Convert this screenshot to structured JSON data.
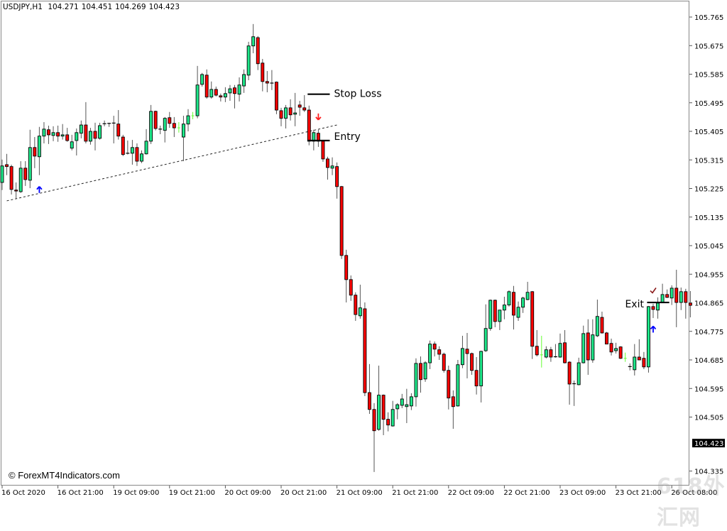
{
  "header": {
    "symbol_timeframe": "USDJPY,H1",
    "open": "104.271",
    "high": "104.451",
    "low": "104.269",
    "close": "104.423"
  },
  "copyright": "© ForexMT4Indicators.com",
  "watermark": "618外汇网",
  "chart_data": {
    "type": "candlestick",
    "title": "USDJPY,H1",
    "grid": false,
    "ylim": [
      104.32,
      105.8
    ],
    "y_tick_labels": [
      "105.765",
      "105.675",
      "105.585",
      "105.495",
      "105.405",
      "105.315",
      "105.225",
      "105.135",
      "105.045",
      "104.955",
      "104.865",
      "104.775",
      "104.685",
      "104.595",
      "104.505",
      "104.335"
    ],
    "current_price": "104.423",
    "x_tick_labels": [
      "16 Oct 2020",
      "16 Oct 21:00",
      "19 Oct 09:00",
      "19 Oct 21:00",
      "20 Oct 09:00",
      "20 Oct 21:00",
      "21 Oct 09:00",
      "21 Oct 21:00",
      "22 Oct 09:00",
      "22 Oct 21:00",
      "23 Oct 09:00",
      "23 Oct 21:00",
      "26 Oct 08:00"
    ],
    "x_tick_bar_step": 12,
    "colors": {
      "bull": "#1ee88a",
      "bear": "#ff0000",
      "neutral": "#66ff33",
      "outline": "#000000",
      "wick": "#555555",
      "signal_up": "#0000ff",
      "signal_down": "#ff2020",
      "check": "#8b1a1a"
    },
    "neutral_bars": [
      38,
      41,
      116,
      134
    ],
    "bars_ohlc": [
      [
        105.244,
        105.316,
        105.22,
        105.296
      ],
      [
        105.3,
        105.334,
        105.267,
        105.294
      ],
      [
        105.294,
        105.3,
        105.206,
        105.222
      ],
      [
        105.22,
        105.244,
        105.193,
        105.217
      ],
      [
        105.215,
        105.311,
        105.211,
        105.289
      ],
      [
        105.289,
        105.311,
        105.233,
        105.253
      ],
      [
        105.251,
        105.41,
        105.226,
        105.354
      ],
      [
        105.354,
        105.387,
        105.289,
        105.327
      ],
      [
        105.325,
        105.419,
        105.267,
        105.39
      ],
      [
        105.39,
        105.434,
        105.367,
        105.412
      ],
      [
        105.41,
        105.423,
        105.365,
        105.394
      ],
      [
        105.392,
        105.421,
        105.374,
        105.401
      ],
      [
        105.401,
        105.423,
        105.372,
        105.39
      ],
      [
        105.39,
        105.428,
        105.379,
        105.394
      ],
      [
        105.394,
        105.416,
        105.372,
        105.376
      ],
      [
        105.352,
        105.394,
        105.345,
        105.372
      ],
      [
        105.376,
        105.414,
        105.329,
        105.401
      ],
      [
        105.399,
        105.439,
        105.383,
        105.425
      ],
      [
        105.425,
        105.497,
        105.367,
        105.374
      ],
      [
        105.374,
        105.416,
        105.363,
        105.405
      ],
      [
        105.405,
        105.432,
        105.345,
        105.383
      ],
      [
        105.383,
        105.432,
        105.379,
        105.423
      ],
      [
        105.428,
        105.439,
        105.421,
        105.429
      ],
      [
        105.428,
        105.432,
        105.419,
        105.43
      ],
      [
        105.43,
        105.454,
        105.367,
        105.431
      ],
      [
        105.428,
        105.472,
        105.379,
        105.39
      ],
      [
        105.387,
        105.394,
        105.327,
        105.332
      ],
      [
        105.334,
        105.376,
        105.332,
        105.336
      ],
      [
        105.336,
        105.378,
        105.3,
        105.354
      ],
      [
        105.354,
        105.367,
        105.296,
        105.311
      ],
      [
        105.311,
        105.345,
        105.305,
        105.334
      ],
      [
        105.334,
        105.412,
        105.332,
        105.374
      ],
      [
        105.374,
        105.488,
        105.365,
        105.468
      ],
      [
        105.468,
        105.47,
        105.408,
        105.414
      ],
      [
        105.412,
        105.423,
        105.396,
        105.41
      ],
      [
        105.408,
        105.45,
        105.37,
        105.446
      ],
      [
        105.448,
        105.466,
        105.416,
        105.43
      ],
      [
        105.43,
        105.45,
        105.387,
        105.416
      ],
      [
        105.416,
        105.434,
        105.401,
        105.416
      ],
      [
        105.387,
        105.454,
        105.311,
        105.428
      ],
      [
        105.428,
        105.475,
        105.405,
        105.454
      ],
      [
        105.454,
        105.466,
        105.443,
        105.454
      ],
      [
        105.454,
        105.611,
        105.446,
        105.551
      ],
      [
        105.553,
        105.589,
        105.546,
        105.584
      ],
      [
        105.582,
        105.6,
        105.508,
        105.513
      ],
      [
        105.513,
        105.562,
        105.508,
        105.537
      ],
      [
        105.537,
        105.546,
        105.515,
        105.519
      ],
      [
        105.517,
        105.524,
        105.499,
        105.513
      ],
      [
        105.513,
        105.544,
        105.497,
        105.524
      ],
      [
        105.526,
        105.551,
        105.501,
        105.539
      ],
      [
        105.542,
        105.551,
        105.477,
        105.524
      ],
      [
        105.522,
        105.575,
        105.499,
        105.551
      ],
      [
        105.548,
        105.6,
        105.526,
        105.584
      ],
      [
        105.582,
        105.687,
        105.566,
        105.674
      ],
      [
        105.674,
        105.743,
        105.651,
        105.703
      ],
      [
        105.7,
        105.705,
        105.598,
        105.618
      ],
      [
        105.62,
        105.633,
        105.531,
        105.562
      ],
      [
        105.562,
        105.595,
        105.528,
        105.557
      ],
      [
        105.555,
        105.598,
        105.535,
        105.557
      ],
      [
        105.56,
        105.562,
        105.459,
        105.472
      ],
      [
        105.47,
        105.479,
        105.421,
        105.446
      ],
      [
        105.446,
        105.488,
        105.414,
        105.479
      ],
      [
        105.479,
        105.506,
        105.439,
        105.457
      ],
      [
        105.459,
        105.526,
        105.421,
        105.463
      ],
      [
        105.488,
        105.501,
        105.454,
        105.481
      ],
      [
        105.479,
        105.519,
        105.466,
        105.472
      ],
      [
        105.472,
        105.486,
        105.361,
        105.374
      ],
      [
        105.374,
        105.41,
        105.345,
        105.401
      ],
      [
        105.399,
        105.41,
        105.356,
        105.374
      ],
      [
        105.374,
        105.378,
        105.309,
        105.318
      ],
      [
        105.318,
        105.325,
        105.253,
        105.291
      ],
      [
        105.289,
        105.323,
        105.267,
        105.296
      ],
      [
        105.294,
        105.307,
        105.193,
        105.231
      ],
      [
        105.231,
        105.233,
        105.003,
        105.014
      ],
      [
        105.014,
        105.032,
        104.866,
        104.938
      ],
      [
        104.938,
        104.951,
        104.871,
        104.889
      ],
      [
        104.889,
        104.898,
        104.808,
        104.828
      ],
      [
        104.824,
        104.922,
        104.815,
        104.849
      ],
      [
        104.846,
        104.866,
        104.571,
        104.582
      ],
      [
        104.582,
        104.672,
        104.515,
        104.529
      ],
      [
        104.529,
        104.549,
        104.332,
        104.462
      ],
      [
        104.466,
        104.667,
        104.462,
        104.574
      ],
      [
        104.574,
        104.576,
        104.448,
        104.498
      ],
      [
        104.498,
        104.52,
        104.46,
        104.48
      ],
      [
        104.477,
        104.556,
        104.475,
        104.529
      ],
      [
        104.531,
        104.549,
        104.498,
        104.544
      ],
      [
        104.542,
        104.578,
        104.533,
        104.562
      ],
      [
        104.538,
        104.594,
        104.486,
        104.544
      ],
      [
        104.54,
        104.58,
        104.527,
        104.569
      ],
      [
        104.569,
        104.69,
        104.538,
        104.674
      ],
      [
        104.674,
        104.696,
        104.582,
        104.623
      ],
      [
        104.625,
        104.681,
        104.616,
        104.676
      ],
      [
        104.676,
        104.746,
        104.656,
        104.735
      ],
      [
        104.735,
        104.743,
        104.696,
        104.719
      ],
      [
        104.717,
        104.728,
        104.685,
        104.703
      ],
      [
        104.703,
        104.708,
        104.645,
        104.652
      ],
      [
        104.652,
        104.667,
        104.529,
        104.565
      ],
      [
        104.569,
        104.589,
        104.468,
        104.538
      ],
      [
        104.54,
        104.685,
        104.538,
        104.67
      ],
      [
        104.67,
        104.761,
        104.659,
        104.721
      ],
      [
        104.719,
        104.77,
        104.627,
        104.705
      ],
      [
        104.705,
        104.708,
        104.638,
        104.652
      ],
      [
        104.652,
        104.694,
        104.576,
        104.603
      ],
      [
        104.603,
        104.714,
        104.551,
        104.712
      ],
      [
        104.714,
        104.86,
        104.71,
        104.784
      ],
      [
        104.784,
        104.875,
        104.777,
        104.873
      ],
      [
        104.873,
        104.875,
        104.788,
        104.806
      ],
      [
        104.806,
        104.842,
        104.779,
        104.842
      ],
      [
        104.842,
        104.884,
        104.813,
        104.858
      ],
      [
        104.858,
        104.904,
        104.853,
        104.9
      ],
      [
        104.898,
        104.918,
        104.781,
        104.826
      ],
      [
        104.819,
        104.869,
        104.808,
        104.851
      ],
      [
        104.851,
        104.884,
        104.833,
        104.88
      ],
      [
        104.875,
        104.931,
        104.873,
        104.898
      ],
      [
        104.9,
        104.902,
        104.688,
        104.728
      ],
      [
        104.728,
        104.779,
        104.696,
        104.701
      ],
      [
        104.701,
        104.761,
        104.661,
        104.701
      ],
      [
        104.694,
        104.728,
        104.69,
        104.717
      ],
      [
        104.717,
        104.726,
        104.679,
        104.694
      ],
      [
        104.694,
        104.735,
        104.692,
        104.695
      ],
      [
        104.694,
        104.768,
        104.692,
        104.737
      ],
      [
        104.739,
        104.779,
        104.674,
        104.676
      ],
      [
        104.678,
        104.681,
        104.544,
        104.609
      ],
      [
        104.609,
        104.62,
        104.54,
        104.61
      ],
      [
        104.607,
        104.692,
        104.605,
        104.676
      ],
      [
        104.676,
        104.793,
        104.674,
        104.768
      ],
      [
        104.77,
        104.813,
        104.638,
        104.685
      ],
      [
        104.685,
        104.813,
        104.676,
        104.764
      ],
      [
        104.761,
        104.875,
        104.757,
        104.822
      ],
      [
        104.819,
        104.837,
        104.768,
        104.77
      ],
      [
        104.77,
        104.773,
        104.735,
        104.735
      ],
      [
        104.737,
        104.752,
        104.699,
        104.71
      ],
      [
        104.714,
        104.739,
        104.705,
        104.721
      ],
      [
        104.726,
        104.728,
        104.688,
        104.69
      ],
      [
        104.69,
        104.708,
        104.679,
        104.69
      ],
      [
        104.663,
        104.674,
        104.652,
        104.664
      ],
      [
        104.654,
        104.735,
        104.636,
        104.694
      ],
      [
        104.694,
        104.75,
        104.685,
        104.685
      ],
      [
        104.69,
        104.71,
        104.656,
        104.663
      ],
      [
        104.663,
        104.855,
        104.645,
        104.853
      ],
      [
        104.853,
        104.862,
        104.817,
        104.844
      ],
      [
        104.842,
        104.882,
        104.815,
        104.864
      ],
      [
        104.866,
        104.925,
        104.864,
        104.891
      ],
      [
        104.891,
        104.907,
        104.88,
        104.882
      ],
      [
        104.88,
        104.92,
        104.858,
        104.911
      ],
      [
        104.911,
        104.969,
        104.788,
        104.866
      ],
      [
        104.866,
        104.913,
        104.842,
        104.9
      ],
      [
        104.9,
        104.909,
        104.815,
        104.866
      ],
      [
        104.864,
        104.902,
        104.819,
        104.857
      ]
    ],
    "trendline": {
      "style": "dotted",
      "from": {
        "bar": 1,
        "price": 105.186
      },
      "to": {
        "bar": 72,
        "price": 105.425
      }
    },
    "annotations": {
      "stop_loss": {
        "label": "Stop Loss",
        "price": 105.522,
        "from_bar": 66,
        "to_bar": 70
      },
      "entry": {
        "label": "Entry",
        "price": 105.376,
        "from_bar": 66,
        "to_bar": 70
      },
      "exit": {
        "label": "Exit",
        "price": 104.866,
        "from_bar": 139,
        "to_bar": 143
      }
    },
    "signals": [
      {
        "type": "up-arrow",
        "bar": 8,
        "price": 105.22
      },
      {
        "type": "down-arrow",
        "bar": 68,
        "price": 105.45
      },
      {
        "type": "up-arrow",
        "bar": 140,
        "price": 104.78
      },
      {
        "type": "check",
        "bar": 140,
        "price": 104.903
      }
    ]
  }
}
